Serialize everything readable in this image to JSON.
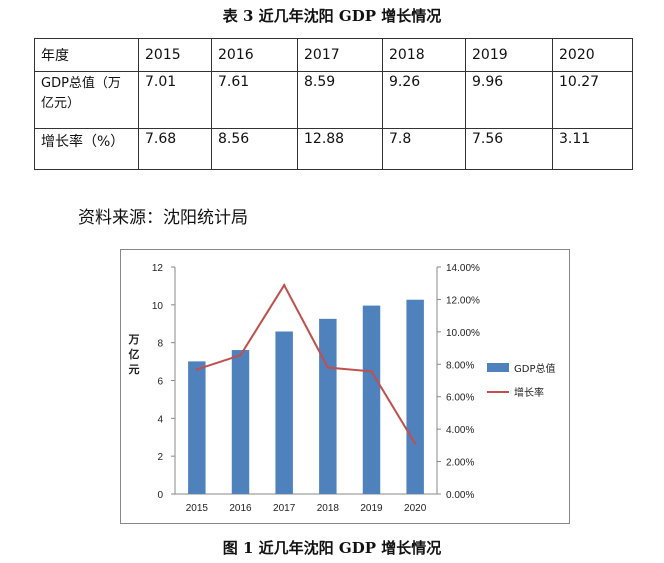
{
  "table_title": "表 3 近几年沈阳 GDP 增长情况",
  "table": {
    "header": [
      "年度",
      "2015",
      "2016",
      "2017",
      "2018",
      "2019",
      "2020"
    ],
    "gdp_row": [
      "GDP总值（万亿元）",
      "7.01",
      "7.61",
      "8.59",
      "9.26",
      "9.96",
      "10.27"
    ],
    "rate_row": [
      "增长率（%）",
      "7.68",
      "8.56",
      "12.88",
      "7.8",
      "7.56",
      "3.11"
    ]
  },
  "source_text": "资料来源：沈阳统计局",
  "figure_title": "图 1 近几年沈阳 GDP 增长情况",
  "chart_data": {
    "type": "bar",
    "categories": [
      "2015",
      "2016",
      "2017",
      "2018",
      "2019",
      "2020"
    ],
    "series": [
      {
        "name": "GDP总值",
        "type": "bar",
        "axis": "left",
        "color": "#4F81BD",
        "values": [
          7.01,
          7.61,
          8.59,
          9.26,
          9.96,
          10.27
        ]
      },
      {
        "name": "增长率",
        "type": "line",
        "axis": "right",
        "color": "#C0504D",
        "values": [
          7.68,
          8.56,
          12.88,
          7.8,
          7.56,
          3.11
        ]
      }
    ],
    "ylabel": "万亿元",
    "ylim": [
      0,
      12
    ],
    "yticks": [
      "0",
      "2",
      "4",
      "6",
      "8",
      "10",
      "12"
    ],
    "y2lim": [
      0,
      14
    ],
    "y2ticks": [
      "0.00%",
      "2.00%",
      "4.00%",
      "6.00%",
      "8.00%",
      "10.00%",
      "12.00%",
      "14.00%"
    ],
    "grid": false,
    "legend_position": "right"
  }
}
